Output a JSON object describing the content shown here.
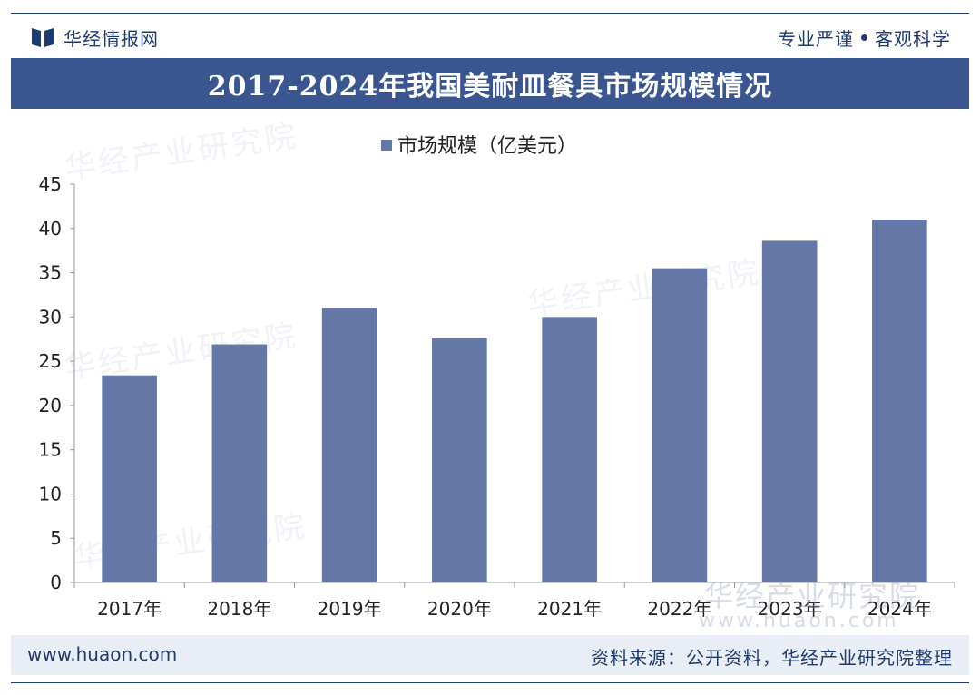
{
  "header": {
    "logo_text": "华经情报网",
    "slogan_left": "专业严谨",
    "slogan_right": "客观科学",
    "title": "2017-2024年我国美耐皿餐具市场规模情况"
  },
  "footer": {
    "site": "www.huaon.com",
    "source": "资料来源：公开资料，华经产业研究院整理"
  },
  "watermark": {
    "text": "华经产业研究院",
    "url": "www.huaon.com"
  },
  "colors": {
    "bar": "#6577a6",
    "title_band": "#3a5590",
    "brand": "#1f3a6e"
  },
  "chart_data": {
    "type": "bar",
    "categories": [
      "2017年",
      "2018年",
      "2019年",
      "2020年",
      "2021年",
      "2022年",
      "2023年",
      "2024年"
    ],
    "series": [
      {
        "name": "市场规模（亿美元）",
        "values": [
          23.4,
          26.9,
          31.0,
          27.6,
          30.0,
          35.5,
          38.6,
          41.0
        ]
      }
    ],
    "ylim": [
      0,
      45
    ],
    "yticks": [
      "0",
      "5",
      "10",
      "15",
      "20",
      "25",
      "30",
      "35",
      "40",
      "45"
    ],
    "xlabel": "",
    "ylabel": "",
    "grid": false,
    "legend": "top-center"
  }
}
